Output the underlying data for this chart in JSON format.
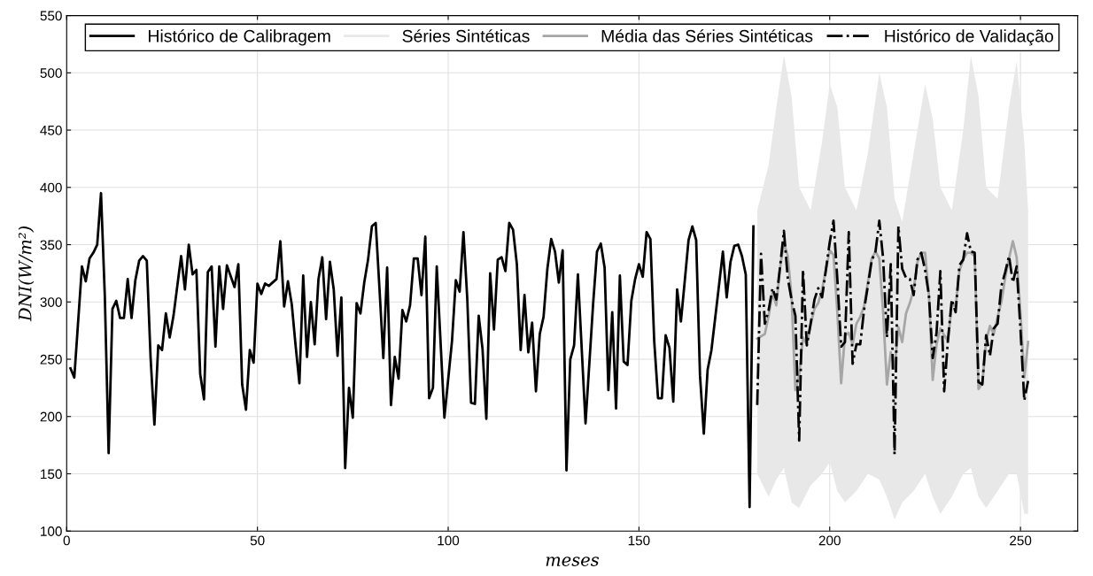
{
  "chart_data": {
    "type": "line",
    "xlabel": "meses",
    "ylabel": "DNI(W/m²)",
    "xlim": [
      0,
      265
    ],
    "xticks": [
      0,
      50,
      100,
      150,
      200,
      250
    ],
    "ylim": [
      100,
      550
    ],
    "yticks": [
      100,
      150,
      200,
      250,
      300,
      350,
      400,
      450,
      500,
      550
    ],
    "grid": true,
    "legend": "top",
    "series": [
      {
        "name": "Histórico de Calibragem",
        "color": "#000000",
        "line_style": "solid",
        "x": [
          1,
          2,
          4,
          5,
          6,
          7,
          8,
          9,
          10,
          11,
          12,
          13,
          14,
          15,
          16,
          17,
          18,
          19,
          20,
          21,
          22,
          23,
          24,
          25,
          26,
          27,
          28,
          29,
          30,
          31,
          32,
          33,
          34,
          35,
          36,
          37,
          38,
          39,
          40,
          41,
          42,
          44,
          45,
          46,
          47,
          48,
          49,
          50,
          51,
          52,
          53,
          55,
          56,
          57,
          58,
          59,
          60,
          61,
          62,
          63,
          64,
          65,
          66,
          67,
          68,
          69,
          70,
          71,
          72,
          73,
          74,
          75,
          76,
          77,
          78,
          79,
          80,
          81,
          82,
          83,
          84,
          85,
          86,
          87,
          88,
          89,
          90,
          91,
          92,
          93,
          94,
          95,
          96,
          97,
          99,
          101,
          102,
          103,
          104,
          105,
          106,
          107,
          108,
          109,
          110,
          111,
          112,
          113,
          114,
          115,
          116,
          117,
          118,
          119,
          120,
          121,
          122,
          123,
          124,
          125,
          126,
          127,
          128,
          129,
          130,
          131,
          132,
          133,
          134,
          136,
          138,
          139,
          140,
          141,
          142,
          143,
          144,
          145,
          146,
          147,
          148,
          149,
          150,
          151,
          152,
          153,
          154,
          155,
          156,
          157,
          158,
          159,
          160,
          161,
          162,
          163,
          164,
          165,
          166,
          167,
          168,
          169,
          171,
          172,
          173,
          174,
          175,
          176,
          177,
          178,
          179,
          180
        ],
        "values": [
          242,
          234,
          331,
          318,
          338,
          343,
          350,
          395,
          305,
          168,
          294,
          301,
          286,
          286,
          320,
          286,
          319,
          336,
          340,
          336,
          251,
          193,
          262,
          258,
          290,
          269,
          288,
          314,
          340,
          311,
          350,
          324,
          328,
          237,
          215,
          326,
          331,
          261,
          331,
          294,
          332,
          313,
          333,
          228,
          206,
          258,
          247,
          316,
          307,
          316,
          314,
          320,
          353,
          296,
          318,
          298,
          262,
          229,
          323,
          252,
          300,
          263,
          320,
          339,
          285,
          335,
          311,
          253,
          304,
          155,
          225,
          199,
          299,
          290,
          317,
          337,
          366,
          369,
          311,
          251,
          330,
          210,
          252,
          233,
          293,
          283,
          297,
          338,
          338,
          306,
          357,
          216,
          225,
          331,
          199,
          266,
          319,
          309,
          361,
          303,
          212,
          211,
          288,
          259,
          198,
          325,
          276,
          337,
          339,
          327,
          369,
          363,
          333,
          258,
          306,
          256,
          282,
          222,
          272,
          287,
          329,
          355,
          344,
          317,
          345,
          153,
          250,
          262,
          324,
          194,
          299,
          344,
          351,
          330,
          223,
          291,
          207,
          323,
          248,
          245,
          301,
          320,
          333,
          322,
          361,
          355,
          266,
          216,
          216,
          271,
          260,
          213,
          311,
          283,
          318,
          354,
          366,
          354,
          236,
          185,
          241,
          258,
          315,
          344,
          304,
          335,
          349,
          350,
          340,
          324,
          121,
          366
        ]
      },
      {
        "name": "Séries Sintéticas",
        "color": "#e8e8e8",
        "line_style": "solid",
        "x": [
          181,
          184,
          186,
          188,
          190,
          192,
          195,
          198,
          200,
          202,
          204,
          207,
          210,
          213,
          215,
          217,
          219,
          222,
          225,
          227,
          229,
          232,
          235,
          237,
          239,
          241,
          244,
          247,
          249,
          251,
          252
        ],
        "values": [
          null,
          null,
          null,
          null,
          null,
          null,
          null,
          null,
          null,
          null,
          null,
          null,
          null,
          null,
          null,
          null,
          null,
          null,
          null,
          null,
          null,
          null,
          null,
          null,
          null,
          null,
          null,
          null,
          null,
          null,
          null
        ],
        "lower": [
          150,
          130,
          145,
          155,
          125,
          120,
          140,
          150,
          160,
          135,
          125,
          135,
          150,
          145,
          130,
          110,
          125,
          135,
          150,
          130,
          115,
          130,
          150,
          155,
          130,
          120,
          135,
          150,
          150,
          115,
          115
        ],
        "upper": [
          380,
          420,
          470,
          515,
          480,
          400,
          380,
          440,
          490,
          470,
          400,
          380,
          430,
          500,
          470,
          390,
          370,
          430,
          490,
          460,
          400,
          380,
          450,
          515,
          480,
          400,
          390,
          470,
          510,
          440,
          380
        ]
      },
      {
        "name": "Média das Séries Sintéticas",
        "color": "#a6a6a6",
        "line_style": "solid",
        "x": [
          181,
          183,
          184,
          185,
          186,
          187,
          188,
          189,
          190,
          191,
          192,
          193,
          194,
          195,
          196,
          197,
          198,
          199,
          200,
          201,
          202,
          203,
          204,
          205,
          206,
          207,
          208,
          209,
          210,
          211,
          212,
          213,
          214,
          215,
          216,
          217,
          218,
          219,
          220,
          221,
          222,
          223,
          224,
          225,
          226,
          227,
          228,
          229,
          230,
          231,
          232,
          233,
          234,
          235,
          236,
          237,
          238,
          239,
          240,
          241,
          242,
          243,
          244,
          245,
          246,
          247,
          248,
          249,
          250,
          251,
          252
        ],
        "values": [
          268,
          272,
          288,
          308,
          297,
          330,
          352,
          340,
          305,
          223,
          236,
          269,
          263,
          280,
          294,
          299,
          311,
          328,
          345,
          341,
          291,
          229,
          271,
          273,
          263,
          281,
          287,
          296,
          317,
          338,
          344,
          338,
          291,
          228,
          256,
          242,
          278,
          265,
          290,
          299,
          311,
          335,
          343,
          343,
          306,
          232,
          263,
          277,
          271,
          266,
          298,
          296,
          327,
          337,
          343,
          343,
          340,
          224,
          229,
          266,
          279,
          272,
          287,
          300,
          321,
          338,
          353,
          339,
          290,
          234,
          265
        ]
      },
      {
        "name": "Histórico de Validação",
        "color": "#000000",
        "line_style": "dashdot",
        "x": [
          181,
          182,
          183,
          184,
          185,
          186,
          187,
          188,
          189,
          190,
          191,
          192,
          193,
          194,
          195,
          196,
          197,
          198,
          199,
          200,
          201,
          202,
          203,
          204,
          205,
          206,
          207,
          208,
          209,
          210,
          211,
          212,
          213,
          214,
          215,
          216,
          217,
          218,
          219,
          220,
          221,
          222,
          223,
          224,
          225,
          226,
          227,
          228,
          229,
          230,
          231,
          232,
          233,
          234,
          235,
          236,
          237,
          238,
          239,
          240,
          241,
          242,
          243,
          244,
          245,
          246,
          247,
          248,
          249,
          250,
          251,
          252
        ],
        "values": [
          210,
          342,
          281,
          293,
          312,
          302,
          331,
          362,
          321,
          302,
          288,
          179,
          328,
          262,
          281,
          302,
          312,
          304,
          328,
          352,
          371,
          320,
          261,
          265,
          361,
          246,
          263,
          263,
          293,
          314,
          336,
          344,
          371,
          338,
          269,
          333,
          167,
          366,
          329,
          321,
          320,
          306,
          337,
          343,
          328,
          306,
          251,
          273,
          327,
          222,
          267,
          302,
          291,
          332,
          337,
          360,
          344,
          343,
          230,
          228,
          271,
          253,
          277,
          281,
          314,
          326,
          340,
          317,
          331,
          276,
          214,
          231
        ]
      }
    ]
  }
}
